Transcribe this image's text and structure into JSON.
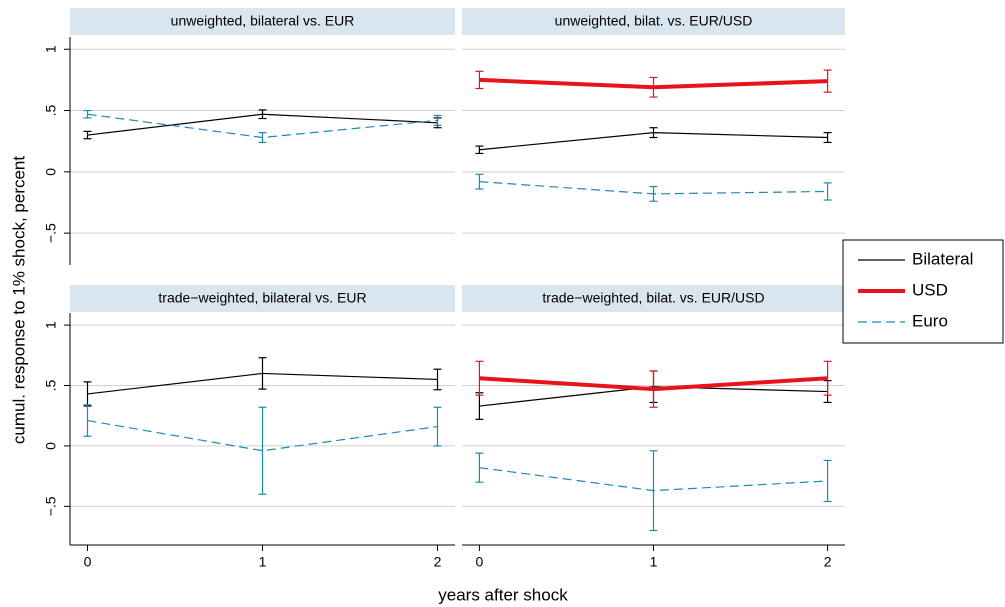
{
  "ylabel": "cumul. response to 1% shock, percent",
  "xlabel": "years after shock",
  "legend": "right",
  "chart_data": [
    {
      "type": "line",
      "title": "unweighted, bilateral vs. EUR",
      "x": [
        0,
        1,
        2
      ],
      "xlim": [
        -0.1,
        2.1
      ],
      "ylim": [
        -0.76,
        1.1
      ],
      "yticks": [
        1,
        {
          "value": 0.5,
          "label": ".5"
        },
        0,
        {
          "value": -0.5,
          "label": "−.5"
        }
      ],
      "grid": true,
      "series": [
        {
          "name": "Bilateral",
          "color": "#000000",
          "width": 1.2,
          "dash": "solid",
          "values": [
            0.3,
            0.47,
            0.4
          ],
          "errors": [
            0.03,
            0.035,
            0.04
          ]
        },
        {
          "name": "Euro",
          "color": "#1a8cb4",
          "width": 1.2,
          "dash": "dashed",
          "values": [
            0.47,
            0.28,
            0.42
          ],
          "errors": [
            0.03,
            0.04,
            0.04
          ]
        }
      ]
    },
    {
      "type": "line",
      "title": "unweighted, bilat. vs. EUR/USD",
      "x": [
        0,
        1,
        2
      ],
      "xlim": [
        -0.1,
        2.1
      ],
      "ylim": [
        -0.76,
        1.1
      ],
      "yticks": [
        1,
        {
          "value": 0.5,
          "label": ".5"
        },
        0,
        {
          "value": -0.5,
          "label": "−.5"
        }
      ],
      "grid": true,
      "series": [
        {
          "name": "Bilateral",
          "color": "#000000",
          "width": 1.2,
          "dash": "solid",
          "values": [
            0.18,
            0.32,
            0.28
          ],
          "errors": [
            0.03,
            0.04,
            0.04
          ]
        },
        {
          "name": "USD",
          "color": "#e8141b",
          "width": 4,
          "dash": "solid",
          "values": [
            0.75,
            0.69,
            0.74
          ],
          "errors": [
            0.07,
            0.08,
            0.09
          ]
        },
        {
          "name": "Euro",
          "color": "#1a8cb4",
          "width": 1.2,
          "dash": "dashed",
          "values": [
            -0.08,
            -0.18,
            -0.16
          ],
          "errors": [
            0.06,
            0.06,
            0.07
          ]
        }
      ]
    },
    {
      "type": "line",
      "title": "trade−weighted, bilateral vs. EUR",
      "x": [
        0,
        1,
        2
      ],
      "xlim": [
        -0.1,
        2.1
      ],
      "ylim": [
        -0.82,
        1.1
      ],
      "xticks": [
        0,
        1,
        2
      ],
      "yticks": [
        1,
        {
          "value": 0.5,
          "label": ".5"
        },
        0,
        {
          "value": -0.5,
          "label": "−.5"
        }
      ],
      "grid": true,
      "series": [
        {
          "name": "Bilateral",
          "color": "#000000",
          "width": 1.2,
          "dash": "solid",
          "values": [
            0.43,
            0.6,
            0.55
          ],
          "errors": [
            0.1,
            0.13,
            0.085
          ]
        },
        {
          "name": "Euro",
          "color": "#1a8cb4",
          "width": 1.2,
          "dash": "dashed",
          "values": [
            0.21,
            -0.04,
            0.16
          ],
          "errors": [
            0.13,
            0.36,
            0.16
          ]
        }
      ]
    },
    {
      "type": "line",
      "title": "trade−weighted, bilat. vs. EUR/USD",
      "x": [
        0,
        1,
        2
      ],
      "xlim": [
        -0.1,
        2.1
      ],
      "ylim": [
        -0.82,
        1.1
      ],
      "xticks": [
        0,
        1,
        2
      ],
      "yticks": [
        1,
        {
          "value": 0.5,
          "label": ".5"
        },
        0,
        {
          "value": -0.5,
          "label": "−.5"
        }
      ],
      "grid": true,
      "series": [
        {
          "name": "Bilateral",
          "color": "#000000",
          "width": 1.2,
          "dash": "solid",
          "values": [
            0.33,
            0.49,
            0.45
          ],
          "errors": [
            0.11,
            0.13,
            0.09
          ]
        },
        {
          "name": "USD",
          "color": "#e8141b",
          "width": 4,
          "dash": "solid",
          "values": [
            0.56,
            0.47,
            0.56
          ],
          "errors": [
            0.14,
            0.15,
            0.14
          ]
        },
        {
          "name": "Euro",
          "color": "#1a8cb4",
          "width": 1.2,
          "dash": "dashed",
          "values": [
            -0.18,
            -0.37,
            -0.29
          ],
          "errors": [
            0.12,
            0.33,
            0.17
          ]
        }
      ]
    }
  ]
}
